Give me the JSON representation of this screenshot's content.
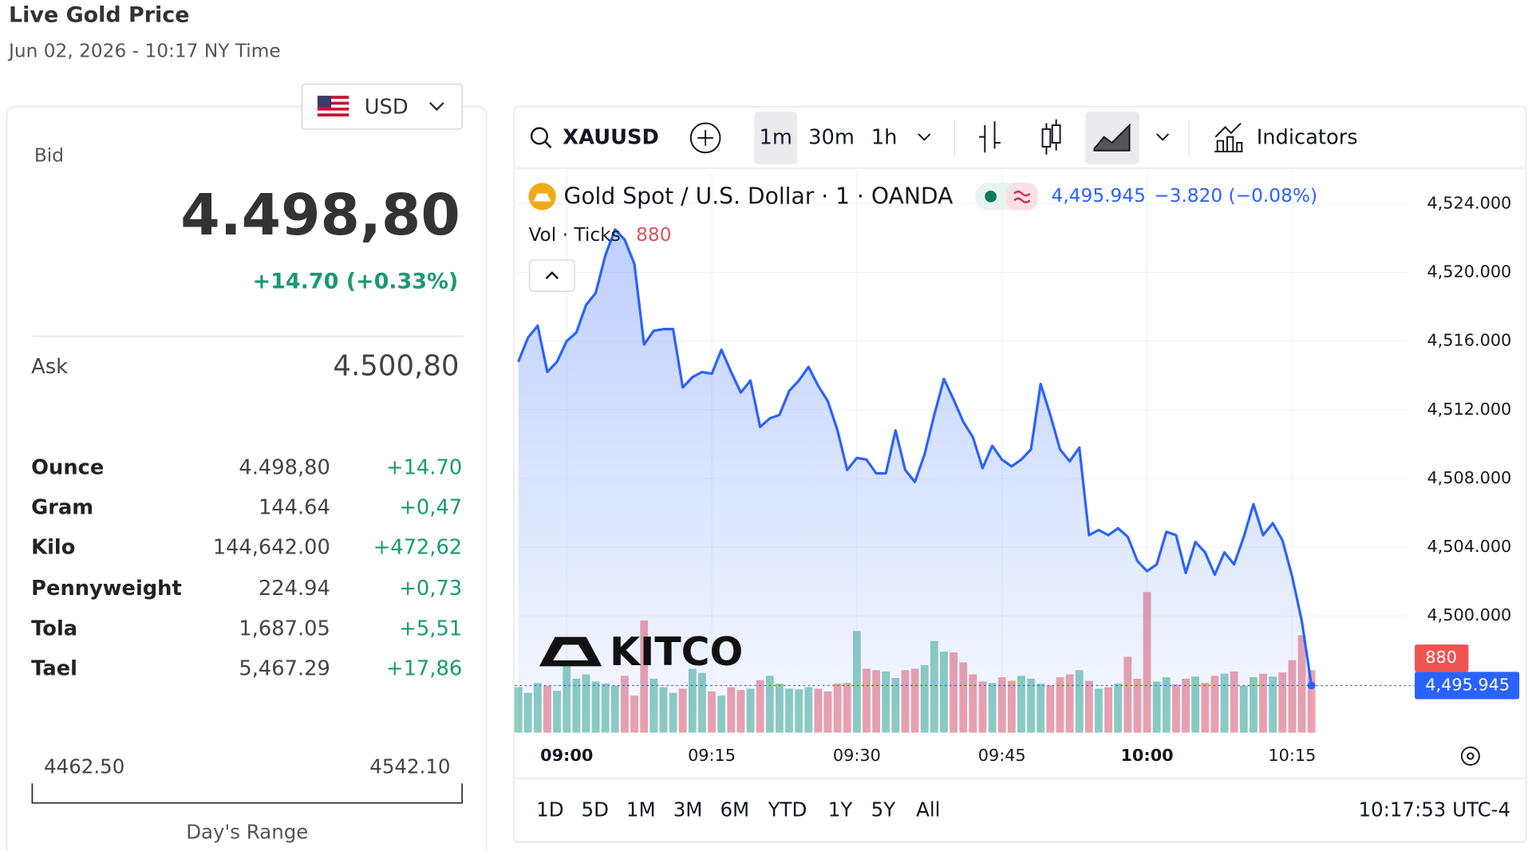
{
  "header": {
    "title": "Live Gold Price",
    "timestamp": "Jun 02, 2026 - 10:17 NY Time"
  },
  "currency": "USD",
  "quote": {
    "bid_label": "Bid",
    "bid": "4.498,80",
    "bid_change": "+14.70 (+0.33%)",
    "ask_label": "Ask",
    "ask": "4.500,80"
  },
  "units": {
    "rows": [
      [
        "Ounce",
        "4.498,80",
        "+14.70"
      ],
      [
        "Gram",
        "144.64",
        "+0,47"
      ],
      [
        "Kilo",
        "144,642.00",
        "+472,62"
      ],
      [
        "Pennyweight",
        "224.94",
        "+0,73"
      ],
      [
        "Tola",
        "1,687.05",
        "+5,51"
      ],
      [
        "Tael",
        "5,467.29",
        "+17,86"
      ]
    ]
  },
  "day_range": {
    "low": "4462.50",
    "high": "4542.10",
    "label": "Day's Range"
  },
  "toolbar": {
    "symbol": "XAUUSD",
    "intervals": [
      "1m",
      "30m",
      "1h"
    ],
    "indicators": "Indicators"
  },
  "range_buttons": [
    "1D",
    "5D",
    "1M",
    "3M",
    "6M",
    "YTD",
    "1Y",
    "5Y",
    "All"
  ],
  "clock": "10:17:53 UTC-4",
  "logo": "KITCO",
  "chart_data": {
    "type": "line",
    "title": "Gold Spot / U.S. Dollar · 1 · OANDA",
    "last_value_label": "4,495.945",
    "change_label": "−3.820 (−0.08%)",
    "volume_title": "Vol · Ticks",
    "volume_label": "880",
    "color": "#2962ff",
    "volume_up_color": "#8fcfbf",
    "volume_down_color": "#f0a3ab",
    "x": [
      "08:55",
      "08:56",
      "08:57",
      "08:58",
      "08:59",
      "09:00",
      "09:01",
      "09:02",
      "09:03",
      "09:04",
      "09:05",
      "09:06",
      "09:07",
      "09:08",
      "09:09",
      "09:10",
      "09:11",
      "09:12",
      "09:13",
      "09:14",
      "09:15",
      "09:16",
      "09:17",
      "09:18",
      "09:19",
      "09:20",
      "09:21",
      "09:22",
      "09:23",
      "09:24",
      "09:25",
      "09:26",
      "09:27",
      "09:28",
      "09:29",
      "09:30",
      "09:31",
      "09:32",
      "09:33",
      "09:34",
      "09:35",
      "09:36",
      "09:37",
      "09:38",
      "09:39",
      "09:40",
      "09:41",
      "09:42",
      "09:43",
      "09:44",
      "09:45",
      "09:46",
      "09:47",
      "09:48",
      "09:49",
      "09:50",
      "09:51",
      "09:52",
      "09:53",
      "09:54",
      "09:55",
      "09:56",
      "09:57",
      "09:58",
      "09:59",
      "10:00",
      "10:01",
      "10:02",
      "10:03",
      "10:04",
      "10:05",
      "10:06",
      "10:07",
      "10:08",
      "10:09",
      "10:10",
      "10:11",
      "10:12",
      "10:13",
      "10:14",
      "10:15",
      "10:16",
      "10:17"
    ],
    "values": [
      4514.8,
      4516.2,
      4516.9,
      4514.2,
      4514.8,
      4516.0,
      4516.5,
      4518.1,
      4518.8,
      4521.0,
      4522.5,
      4521.9,
      4520.5,
      4515.8,
      4516.6,
      4516.7,
      4516.7,
      4513.3,
      4513.9,
      4514.2,
      4514.1,
      4515.5,
      4514.2,
      4513.0,
      4513.7,
      4511.0,
      4511.5,
      4511.7,
      4513.1,
      4513.7,
      4514.5,
      4513.4,
      4512.5,
      4510.8,
      4508.5,
      4509.2,
      4509.1,
      4508.3,
      4508.3,
      4510.8,
      4508.5,
      4507.8,
      4509.4,
      4511.7,
      4513.8,
      4512.6,
      4511.3,
      4510.4,
      4508.6,
      4509.9,
      4509.1,
      4508.7,
      4509.1,
      4509.7,
      4513.5,
      4511.7,
      4509.7,
      4509.0,
      4509.8,
      4504.7,
      4505.0,
      4504.7,
      4505.1,
      4504.6,
      4503.2,
      4502.6,
      4503.0,
      4504.9,
      4504.7,
      4502.5,
      4504.3,
      4503.7,
      4502.4,
      4503.7,
      4503.0,
      4504.6,
      4506.5,
      4504.7,
      4505.4,
      4504.4,
      4502.3,
      4499.7,
      4495.945
    ],
    "volume": [
      640,
      560,
      700,
      660,
      590,
      980,
      760,
      820,
      720,
      690,
      660,
      800,
      520,
      1580,
      760,
      640,
      560,
      620,
      900,
      840,
      580,
      520,
      640,
      600,
      620,
      740,
      800,
      690,
      620,
      610,
      640,
      620,
      580,
      690,
      700,
      1430,
      900,
      880,
      860,
      770,
      880,
      900,
      950,
      1290,
      1140,
      1130,
      990,
      820,
      720,
      700,
      780,
      730,
      800,
      760,
      690,
      670,
      780,
      820,
      880,
      730,
      620,
      640,
      690,
      1070,
      760,
      1980,
      720,
      780,
      680,
      760,
      790,
      700,
      800,
      830,
      860,
      660,
      780,
      830,
      790,
      850,
      1020,
      1370,
      880
    ],
    "ylim": [
      4493.2,
      4525.9
    ],
    "yticks": [
      {
        "value": 4500,
        "label": "4,500.000"
      },
      {
        "value": 4504,
        "label": "4,504.000"
      },
      {
        "value": 4508,
        "label": "4,508.000"
      },
      {
        "value": 4512,
        "label": "4,512.000"
      },
      {
        "value": 4516,
        "label": "4,516.000"
      },
      {
        "value": 4520,
        "label": "4,520.000"
      },
      {
        "value": 4524,
        "label": "4,524.000"
      }
    ],
    "xticks": [
      "09:00",
      "09:15",
      "09:30",
      "09:45",
      "10:00",
      "10:15"
    ],
    "grid": true
  }
}
